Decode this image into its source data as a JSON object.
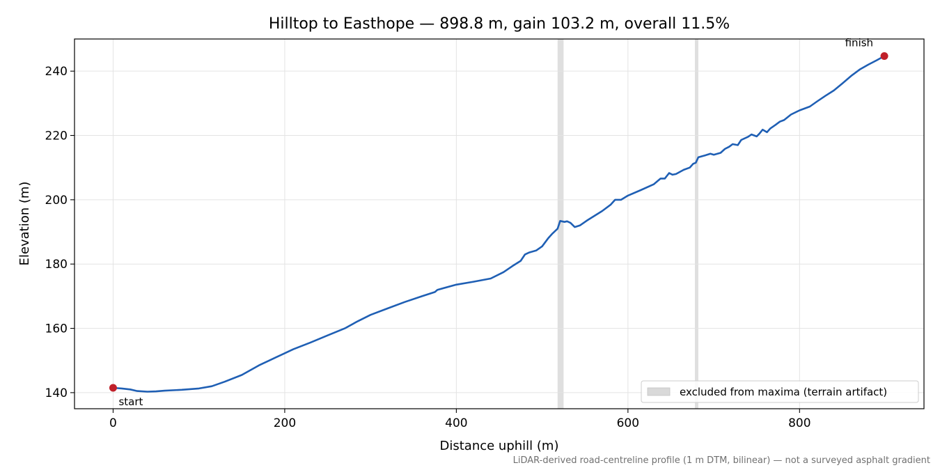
{
  "chart_data": {
    "type": "line",
    "title": "Hilltop to Easthope — 898.8 m, gain 103.2 m, overall 11.5%",
    "xlabel": "Distance uphill (m)",
    "ylabel": "Elevation (m)",
    "xlim": [
      -45,
      945
    ],
    "ylim": [
      135,
      250
    ],
    "xticks": [
      0,
      200,
      400,
      600,
      800
    ],
    "yticks": [
      140,
      160,
      180,
      200,
      220,
      240
    ],
    "grid": true,
    "legend_position": "lower-right",
    "legend": [
      {
        "label": "excluded from maxima (terrain artifact)",
        "kind": "band",
        "color": "#d9d9d9"
      }
    ],
    "excluded_ranges": [
      [
        518,
        525
      ],
      [
        678,
        682
      ]
    ],
    "series": [
      {
        "color": "#1f5fb4",
        "points": [
          [
            0,
            141.5
          ],
          [
            10,
            141.3
          ],
          [
            20,
            141.0
          ],
          [
            28,
            140.5
          ],
          [
            40,
            140.3
          ],
          [
            50,
            140.4
          ],
          [
            60,
            140.6
          ],
          [
            80,
            140.9
          ],
          [
            100,
            141.3
          ],
          [
            115,
            142.0
          ],
          [
            130,
            143.4
          ],
          [
            150,
            145.5
          ],
          [
            170,
            148.5
          ],
          [
            190,
            151.0
          ],
          [
            210,
            153.5
          ],
          [
            230,
            155.6
          ],
          [
            250,
            157.8
          ],
          [
            270,
            160.0
          ],
          [
            285,
            162.2
          ],
          [
            300,
            164.2
          ],
          [
            320,
            166.2
          ],
          [
            340,
            168.2
          ],
          [
            360,
            170.0
          ],
          [
            375,
            171.3
          ],
          [
            378,
            172.0
          ],
          [
            400,
            173.6
          ],
          [
            420,
            174.5
          ],
          [
            440,
            175.5
          ],
          [
            455,
            177.5
          ],
          [
            465,
            179.3
          ],
          [
            475,
            181.0
          ],
          [
            480,
            183.0
          ],
          [
            485,
            183.6
          ],
          [
            493,
            184.2
          ],
          [
            500,
            185.5
          ],
          [
            507,
            188.0
          ],
          [
            512,
            189.5
          ],
          [
            518,
            191.0
          ],
          [
            521,
            193.4
          ],
          [
            526,
            193.1
          ],
          [
            529,
            193.3
          ],
          [
            533,
            192.8
          ],
          [
            538,
            191.5
          ],
          [
            544,
            192.0
          ],
          [
            552,
            193.5
          ],
          [
            570,
            196.5
          ],
          [
            580,
            198.5
          ],
          [
            585,
            200.0
          ],
          [
            592,
            200.0
          ],
          [
            600,
            201.3
          ],
          [
            615,
            203.0
          ],
          [
            630,
            204.8
          ],
          [
            638,
            206.6
          ],
          [
            643,
            206.6
          ],
          [
            648,
            208.3
          ],
          [
            652,
            207.8
          ],
          [
            656,
            208.0
          ],
          [
            665,
            209.3
          ],
          [
            672,
            210.0
          ],
          [
            676,
            211.2
          ],
          [
            679,
            211.5
          ],
          [
            682,
            213.2
          ],
          [
            690,
            213.8
          ],
          [
            696,
            214.3
          ],
          [
            700,
            214.0
          ],
          [
            708,
            214.6
          ],
          [
            713,
            215.8
          ],
          [
            718,
            216.5
          ],
          [
            722,
            217.3
          ],
          [
            728,
            217.0
          ],
          [
            732,
            218.6
          ],
          [
            740,
            219.6
          ],
          [
            744,
            220.3
          ],
          [
            750,
            219.7
          ],
          [
            753,
            220.5
          ],
          [
            757,
            221.8
          ],
          [
            762,
            221.0
          ],
          [
            766,
            222.2
          ],
          [
            772,
            223.3
          ],
          [
            777,
            224.3
          ],
          [
            782,
            224.8
          ],
          [
            790,
            226.5
          ],
          [
            800,
            227.8
          ],
          [
            812,
            229.0
          ],
          [
            820,
            230.5
          ],
          [
            830,
            232.3
          ],
          [
            840,
            234.0
          ],
          [
            850,
            236.2
          ],
          [
            860,
            238.5
          ],
          [
            870,
            240.5
          ],
          [
            880,
            242.0
          ],
          [
            890,
            243.4
          ],
          [
            898.8,
            244.7
          ]
        ]
      }
    ],
    "markers": [
      {
        "x": 0,
        "y": 141.5,
        "label": "start",
        "color": "#c0202a"
      },
      {
        "x": 898.8,
        "y": 244.7,
        "label": "finish",
        "color": "#c0202a"
      }
    ],
    "footnote": "LiDAR-derived road-centreline profile (1 m DTM, bilinear) — not a surveyed asphalt gradient"
  }
}
